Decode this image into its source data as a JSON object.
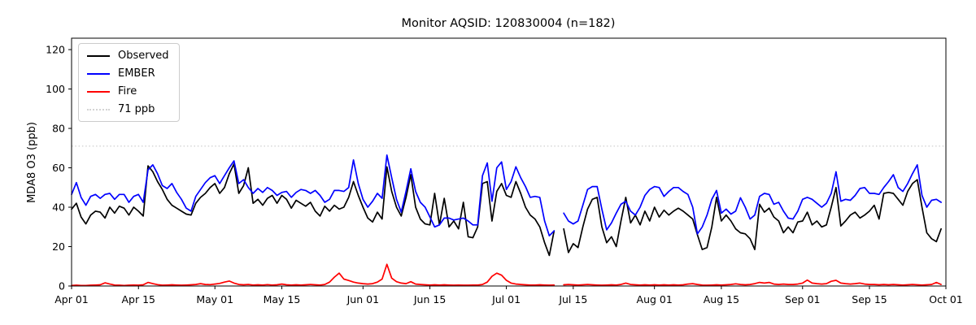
{
  "title": "Monitor AQSID: 120830004 (n=182)",
  "chart_data": {
    "type": "line",
    "title": "Monitor AQSID: 120830004 (n=182)",
    "xlabel": "",
    "ylabel": "MDA8 O3 (ppb)",
    "grid": false,
    "legend_position": "upper left",
    "ylim": [
      0,
      125.8
    ],
    "yticks": [
      0,
      20,
      40,
      60,
      80,
      100,
      120
    ],
    "x_axis_start_day": 0,
    "x_axis_end_day": 183,
    "x_tick_days": [
      0,
      14,
      30,
      44,
      61,
      75,
      91,
      105,
      122,
      136,
      153,
      167,
      183
    ],
    "x_tick_labels": [
      "Apr 01",
      "Apr 15",
      "May 01",
      "May 15",
      "Jun 01",
      "Jun 15",
      "Jul 01",
      "Jul 15",
      "Aug 01",
      "Aug 15",
      "Sep 01",
      "Sep 15",
      "Oct 01"
    ],
    "n_observations": 182,
    "missing_day": "Jul 12",
    "reference_line": {
      "label": "71 ppb",
      "value": 71,
      "color": "#d3d3d3",
      "style": "dotted"
    },
    "series": [
      {
        "name": "Observed",
        "color": "#000000",
        "values": [
          39,
          42,
          35,
          31.5,
          36,
          38,
          37.5,
          34.5,
          40,
          37,
          40.5,
          39.5,
          36,
          40,
          38,
          35.5,
          61,
          58,
          53,
          49,
          44,
          41,
          39.5,
          38,
          36.5,
          36,
          42,
          45,
          47,
          50,
          52,
          47,
          50,
          57,
          62,
          47,
          51,
          60,
          42,
          44,
          41,
          44.5,
          46,
          42,
          46,
          44,
          39.5,
          43.5,
          42,
          40.5,
          42.5,
          38,
          35.5,
          40.5,
          38,
          41,
          39,
          40,
          45,
          53,
          46,
          40,
          34.5,
          32.5,
          37.5,
          34,
          60.5,
          48,
          40,
          35.5,
          45,
          56.5,
          40,
          34,
          31.5,
          31,
          47,
          31,
          44.5,
          30,
          33,
          29,
          42.5,
          25,
          24.5,
          30,
          52,
          53,
          33,
          48,
          52,
          46,
          45,
          53,
          47,
          40,
          36,
          34,
          30,
          22,
          15.5,
          28,
          null,
          29,
          17,
          21.5,
          19.5,
          30,
          39,
          44,
          45,
          30,
          22,
          25,
          20,
          33,
          45,
          32,
          36,
          31,
          38,
          33,
          40,
          35,
          38.5,
          36,
          38,
          39.5,
          38,
          36,
          34,
          26,
          18.5,
          19.5,
          30,
          45,
          33,
          36,
          33,
          29,
          27,
          26.5,
          24,
          18.5,
          41.5,
          37.5,
          39.5,
          35,
          33,
          27,
          30,
          27,
          32.5,
          33,
          37.5,
          31,
          33,
          30,
          31,
          40,
          50,
          30.5,
          33,
          36,
          37.5,
          34.5,
          36,
          38,
          41,
          34,
          47,
          47.5,
          47,
          44,
          41,
          48,
          52,
          54,
          40,
          27,
          24,
          22.5,
          29
        ]
      },
      {
        "name": "EMBER",
        "color": "#0000ff",
        "values": [
          46.5,
          52.5,
          45,
          41,
          45.5,
          46.5,
          44.5,
          46.5,
          47,
          44,
          46.5,
          46.5,
          42.5,
          45.5,
          46.5,
          42.5,
          59,
          61.5,
          57,
          51,
          49.5,
          52,
          47.5,
          44,
          39.5,
          38,
          45.5,
          49,
          52.5,
          55,
          56,
          52,
          56,
          60,
          63.5,
          52,
          54,
          50,
          47,
          49.5,
          47.5,
          50,
          48.5,
          46,
          47.5,
          48,
          45,
          47.5,
          49,
          48.5,
          47,
          48.5,
          46,
          42.5,
          44,
          48.5,
          48.5,
          48,
          50,
          64,
          52,
          44,
          40,
          43,
          47,
          44.5,
          66.5,
          55,
          44,
          37.5,
          48,
          59.5,
          48,
          42.5,
          40,
          35,
          30,
          31,
          34.5,
          34.5,
          33.5,
          34,
          34.5,
          33,
          31,
          31,
          56,
          62.5,
          43,
          60,
          63,
          49,
          53,
          60.5,
          55,
          50.5,
          45,
          45.5,
          45,
          33,
          25.5,
          28,
          null,
          37,
          33,
          31.5,
          33,
          41,
          49,
          50.5,
          50.5,
          39,
          28.5,
          32,
          37,
          41.5,
          43,
          38,
          36,
          40,
          46,
          49,
          50.5,
          50,
          45.5,
          48,
          50,
          50,
          48,
          46.5,
          40,
          26.5,
          30,
          36,
          44,
          48.5,
          37,
          39,
          36.5,
          38,
          44.8,
          40,
          34,
          36,
          45.5,
          47,
          46.5,
          41.5,
          42.5,
          38,
          34.5,
          34,
          38,
          44,
          45,
          44,
          42,
          40,
          42,
          47,
          58,
          43,
          44,
          43.5,
          46,
          49.5,
          50,
          47,
          47,
          46.5,
          50,
          53,
          56.5,
          50,
          48,
          52,
          57,
          61.5,
          46,
          40,
          43.5,
          44,
          42.5
        ]
      },
      {
        "name": "Fire",
        "color": "#ff0000",
        "values": [
          0.3,
          0.4,
          0.3,
          0.3,
          0.4,
          0.5,
          0.6,
          1.6,
          1.0,
          0.5,
          0.4,
          0.3,
          0.4,
          0.5,
          0.4,
          0.6,
          1.8,
          1.2,
          0.7,
          0.4,
          0.5,
          0.6,
          0.5,
          0.4,
          0.5,
          0.6,
          0.8,
          1.2,
          0.8,
          0.7,
          1.0,
          1.3,
          2.0,
          2.5,
          1.5,
          0.8,
          0.6,
          0.8,
          0.5,
          0.6,
          0.5,
          0.7,
          0.5,
          0.6,
          1.0,
          0.6,
          0.5,
          0.6,
          0.5,
          0.6,
          0.8,
          0.6,
          0.5,
          0.8,
          2.0,
          4.5,
          6.5,
          3.5,
          2.8,
          2.0,
          1.5,
          1.2,
          1.0,
          1.2,
          2.0,
          3.5,
          11.0,
          4.0,
          2.2,
          1.5,
          1.2,
          2.2,
          1.0,
          0.8,
          0.6,
          0.5,
          0.6,
          0.5,
          0.6,
          0.5,
          0.4,
          0.5,
          0.4,
          0.4,
          0.5,
          0.5,
          0.8,
          2.0,
          4.9,
          6.5,
          5.5,
          2.9,
          1.5,
          1.0,
          0.8,
          0.6,
          0.5,
          0.5,
          0.6,
          0.5,
          0.4,
          0.5,
          null,
          0.6,
          0.8,
          0.6,
          0.5,
          0.6,
          0.8,
          0.6,
          0.5,
          0.4,
          0.5,
          0.6,
          0.5,
          0.8,
          1.5,
          0.8,
          0.6,
          0.5,
          0.6,
          0.5,
          0.6,
          0.5,
          0.6,
          0.5,
          0.6,
          0.5,
          0.6,
          1.0,
          1.2,
          0.8,
          0.5,
          0.4,
          0.5,
          0.6,
          0.5,
          0.6,
          0.8,
          1.1,
          0.8,
          0.6,
          0.8,
          1.2,
          1.8,
          1.5,
          1.8,
          1.0,
          0.8,
          1.0,
          0.8,
          0.8,
          1.0,
          1.5,
          3.0,
          1.5,
          1.2,
          1.0,
          1.2,
          2.4,
          2.9,
          1.5,
          1.2,
          1.0,
          1.2,
          1.5,
          1.0,
          0.8,
          0.8,
          0.6,
          0.8,
          0.6,
          0.8,
          0.6,
          0.5,
          0.6,
          0.8,
          0.6,
          0.5,
          0.6,
          0.8,
          1.8,
          0.8
        ]
      }
    ]
  },
  "legend": {
    "items": [
      {
        "label": "Observed",
        "color": "#000000",
        "style": "solid"
      },
      {
        "label": "EMBER",
        "color": "#0000ff",
        "style": "solid"
      },
      {
        "label": "Fire",
        "color": "#ff0000",
        "style": "solid"
      },
      {
        "label": "71 ppb",
        "color": "#d3d3d3",
        "style": "dotted"
      }
    ]
  }
}
